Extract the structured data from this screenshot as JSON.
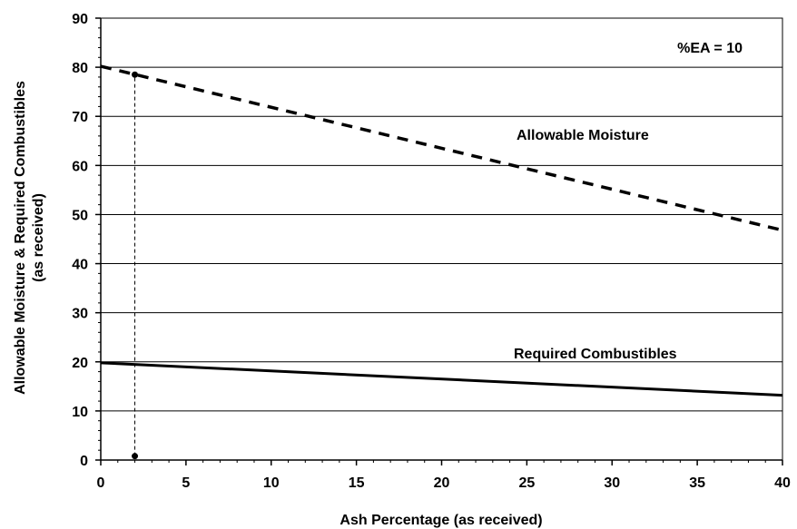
{
  "chart_data": {
    "type": "line",
    "xlabel": "Ash Percentage (as received)",
    "ylabel_lines": [
      "Allowable Moisture & Required Combustibles",
      "(as received)"
    ],
    "xlim": [
      0,
      40
    ],
    "ylim": [
      0,
      90
    ],
    "x_ticks": [
      0,
      5,
      10,
      15,
      20,
      25,
      30,
      35,
      40
    ],
    "y_ticks": [
      0,
      10,
      20,
      30,
      40,
      50,
      60,
      70,
      80,
      90
    ],
    "grid": "horizontal",
    "legend": "none",
    "series": [
      {
        "name": "Allowable Moisture",
        "style": "dashed",
        "color": "#000000",
        "x": [
          0,
          40
        ],
        "y": [
          80.2,
          46.8
        ]
      },
      {
        "name": "Required Combustibles",
        "style": "solid",
        "color": "#000000",
        "x": [
          0,
          40
        ],
        "y": [
          19.8,
          13.2
        ]
      }
    ],
    "reference_line": {
      "style": "dashed",
      "x": 2,
      "y": [
        0.8,
        78.5
      ]
    },
    "reference_points": [
      {
        "x": 2,
        "y": 78.5
      },
      {
        "x": 2,
        "y": 0.8
      }
    ],
    "annotations": [
      "%EA = 10",
      "Allowable Moisture",
      "Required Combustibles"
    ]
  }
}
